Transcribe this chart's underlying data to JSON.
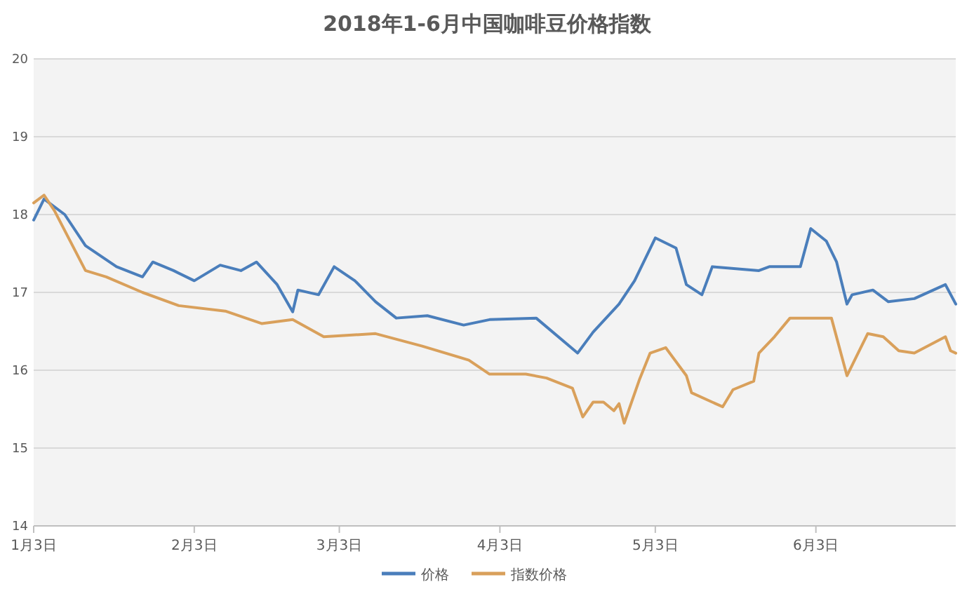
{
  "chart_data": {
    "type": "line",
    "title": "2018年1-6月中国咖啡豆价格指数",
    "xlim": [
      "2018-01-03",
      "2018-06-30"
    ],
    "xticks": [
      {
        "value": "2018-01-03",
        "label": "1月3日"
      },
      {
        "value": "2018-02-03",
        "label": "2月3日"
      },
      {
        "value": "2018-03-03",
        "label": "3月3日"
      },
      {
        "value": "2018-04-03",
        "label": "4月3日"
      },
      {
        "value": "2018-05-03",
        "label": "5月3日"
      },
      {
        "value": "2018-06-03",
        "label": "6月3日"
      }
    ],
    "ylim": [
      14,
      20
    ],
    "yticks": [
      14,
      15,
      16,
      17,
      18,
      19,
      20
    ],
    "grid": "y",
    "legend": "bottom",
    "series": [
      {
        "name": "价格",
        "color": "#4a7ebb",
        "x": [
          "2018-01-03",
          "2018-01-05",
          "2018-01-09",
          "2018-01-13",
          "2018-01-19",
          "2018-01-24",
          "2018-01-26",
          "2018-01-30",
          "2018-02-03",
          "2018-02-08",
          "2018-02-12",
          "2018-02-15",
          "2018-02-19",
          "2018-02-22",
          "2018-02-23",
          "2018-02-27",
          "2018-03-02",
          "2018-03-06",
          "2018-03-10",
          "2018-03-14",
          "2018-03-20",
          "2018-03-27",
          "2018-04-01",
          "2018-04-10",
          "2018-04-18",
          "2018-04-21",
          "2018-04-26",
          "2018-04-29",
          "2018-05-03",
          "2018-05-07",
          "2018-05-09",
          "2018-05-12",
          "2018-05-14",
          "2018-05-23",
          "2018-05-25",
          "2018-05-31",
          "2018-06-02",
          "2018-06-05",
          "2018-06-07",
          "2018-06-09",
          "2018-06-10",
          "2018-06-14",
          "2018-06-17",
          "2018-06-22",
          "2018-06-28",
          "2018-06-30"
        ],
        "values": [
          17.93,
          18.2,
          18.0,
          17.6,
          17.33,
          17.2,
          17.39,
          17.28,
          17.15,
          17.35,
          17.28,
          17.39,
          17.1,
          16.75,
          17.03,
          16.97,
          17.33,
          17.15,
          16.88,
          16.67,
          16.7,
          16.58,
          16.65,
          16.67,
          16.22,
          16.49,
          16.85,
          17.15,
          17.7,
          17.57,
          17.1,
          16.97,
          17.33,
          17.28,
          17.33,
          17.33,
          17.82,
          17.66,
          17.39,
          16.85,
          16.97,
          17.03,
          16.88,
          16.92,
          17.1,
          16.85
        ]
      },
      {
        "name": "指数价格",
        "color": "#d9a05b",
        "x": [
          "2018-01-03",
          "2018-01-05",
          "2018-01-07",
          "2018-01-13",
          "2018-01-17",
          "2018-01-24",
          "2018-01-31",
          "2018-02-09",
          "2018-02-16",
          "2018-02-22",
          "2018-02-28",
          "2018-03-10",
          "2018-03-19",
          "2018-03-28",
          "2018-04-01",
          "2018-04-08",
          "2018-04-12",
          "2018-04-17",
          "2018-04-19",
          "2018-04-21",
          "2018-04-23",
          "2018-04-25",
          "2018-04-26",
          "2018-04-27",
          "2018-04-30",
          "2018-05-02",
          "2018-05-05",
          "2018-05-09",
          "2018-05-10",
          "2018-05-16",
          "2018-05-18",
          "2018-05-22",
          "2018-05-23",
          "2018-05-26",
          "2018-05-29",
          "2018-06-06",
          "2018-06-09",
          "2018-06-13",
          "2018-06-16",
          "2018-06-19",
          "2018-06-22",
          "2018-06-28",
          "2018-06-29",
          "2018-06-30"
        ],
        "values": [
          18.15,
          18.25,
          18.05,
          17.28,
          17.2,
          17.0,
          16.83,
          16.76,
          16.6,
          16.65,
          16.43,
          16.47,
          16.31,
          16.13,
          15.95,
          15.95,
          15.9,
          15.77,
          15.4,
          15.59,
          15.59,
          15.48,
          15.57,
          15.32,
          15.89,
          16.22,
          16.29,
          15.93,
          15.71,
          15.53,
          15.75,
          15.86,
          16.22,
          16.43,
          16.67,
          16.67,
          15.93,
          16.47,
          16.43,
          16.25,
          16.22,
          16.43,
          16.25,
          16.22
        ]
      }
    ]
  }
}
